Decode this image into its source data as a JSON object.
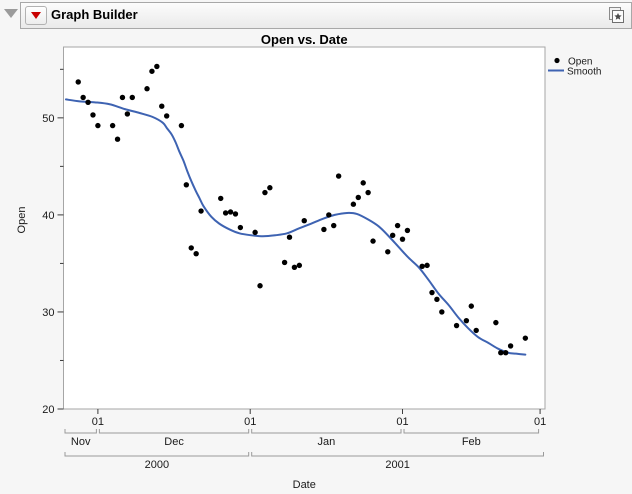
{
  "header": {
    "disclosure_icon": "disclosure-triangle-down",
    "menu_icon": "red-triangle-menu",
    "title": "Graph Builder",
    "corner_icon": "journal-layered-window"
  },
  "colors": {
    "smooth_line": "#3E63B2",
    "point": "#000000",
    "accent_red": "#C80000"
  },
  "chart_data": {
    "type": "scatter",
    "title": "Open vs. Date",
    "xlabel": "Date",
    "ylabel": "Open",
    "ylim": [
      20,
      57.3
    ],
    "x_domain": [
      "2000-11-24",
      "2001-03-02"
    ],
    "grid": "off",
    "legend_position": "right",
    "y_major_ticks": [
      20,
      30,
      40,
      50
    ],
    "y_minor_ticks": [
      25,
      35,
      45,
      55
    ],
    "x_day_ticks": [
      {
        "label": "01",
        "date": "2000-12-01"
      },
      {
        "label": "01",
        "date": "2001-01-01"
      },
      {
        "label": "01",
        "date": "2001-02-01"
      },
      {
        "label": "01",
        "date": "2001-03-01"
      }
    ],
    "x_month_spans": [
      {
        "label": "Nov",
        "start": "2000-11-24",
        "end": "2000-12-01"
      },
      {
        "label": "Dec",
        "start": "2000-12-01",
        "end": "2001-01-01"
      },
      {
        "label": "Jan",
        "start": "2001-01-01",
        "end": "2001-02-01"
      },
      {
        "label": "Feb",
        "start": "2001-02-01",
        "end": "2001-03-01"
      }
    ],
    "x_year_spans": [
      {
        "label": "2000",
        "start": "2000-11-24",
        "end": "2001-01-01"
      },
      {
        "label": "2001",
        "start": "2001-01-01",
        "end": "2001-03-02"
      }
    ],
    "legend": [
      {
        "label": "Open",
        "marker": "point",
        "color": "#000000"
      },
      {
        "label": "Smooth",
        "marker": "line",
        "color": "#3E63B2"
      }
    ],
    "series": [
      {
        "name": "Open",
        "type": "scatter",
        "points": [
          [
            "2000-11-27",
            53.7
          ],
          [
            "2000-11-28",
            52.1
          ],
          [
            "2000-11-29",
            51.6
          ],
          [
            "2000-11-30",
            50.3
          ],
          [
            "2000-12-01",
            49.2
          ],
          [
            "2000-12-04",
            49.2
          ],
          [
            "2000-12-05",
            47.8
          ],
          [
            "2000-12-06",
            52.1
          ],
          [
            "2000-12-07",
            50.4
          ],
          [
            "2000-12-08",
            52.1
          ],
          [
            "2000-12-11",
            53.0
          ],
          [
            "2000-12-12",
            54.8
          ],
          [
            "2000-12-13",
            55.3
          ],
          [
            "2000-12-14",
            51.2
          ],
          [
            "2000-12-15",
            50.2
          ],
          [
            "2000-12-18",
            49.2
          ],
          [
            "2000-12-19",
            43.1
          ],
          [
            "2000-12-20",
            36.6
          ],
          [
            "2000-12-21",
            36.0
          ],
          [
            "2000-12-22",
            40.4
          ],
          [
            "2000-12-26",
            41.7
          ],
          [
            "2000-12-27",
            40.2
          ],
          [
            "2000-12-28",
            40.3
          ],
          [
            "2000-12-29",
            40.1
          ],
          [
            "2000-12-30",
            38.7
          ],
          [
            "2001-01-02",
            38.2
          ],
          [
            "2001-01-03",
            32.7
          ],
          [
            "2001-01-04",
            42.3
          ],
          [
            "2001-01-05",
            42.8
          ],
          [
            "2001-01-08",
            35.1
          ],
          [
            "2001-01-09",
            37.7
          ],
          [
            "2001-01-10",
            34.6
          ],
          [
            "2001-01-11",
            34.8
          ],
          [
            "2001-01-12",
            39.4
          ],
          [
            "2001-01-16",
            38.5
          ],
          [
            "2001-01-17",
            40.0
          ],
          [
            "2001-01-18",
            38.9
          ],
          [
            "2001-01-19",
            44.0
          ],
          [
            "2001-01-22",
            41.1
          ],
          [
            "2001-01-23",
            41.8
          ],
          [
            "2001-01-24",
            43.3
          ],
          [
            "2001-01-25",
            42.3
          ],
          [
            "2001-01-26",
            37.3
          ],
          [
            "2001-01-29",
            36.2
          ],
          [
            "2001-01-30",
            37.9
          ],
          [
            "2001-01-31",
            38.9
          ],
          [
            "2001-02-01",
            37.5
          ],
          [
            "2001-02-02",
            38.4
          ],
          [
            "2001-02-05",
            34.7
          ],
          [
            "2001-02-06",
            34.8
          ],
          [
            "2001-02-07",
            32.0
          ],
          [
            "2001-02-08",
            31.3
          ],
          [
            "2001-02-09",
            30.0
          ],
          [
            "2001-02-12",
            28.6
          ],
          [
            "2001-02-14",
            29.1
          ],
          [
            "2001-02-15",
            30.6
          ],
          [
            "2001-02-16",
            28.1
          ],
          [
            "2001-02-20",
            28.9
          ],
          [
            "2001-02-21",
            25.8
          ],
          [
            "2001-02-22",
            25.8
          ],
          [
            "2001-02-23",
            26.5
          ],
          [
            "2001-02-26",
            27.3
          ]
        ]
      },
      {
        "name": "Smooth",
        "type": "line",
        "x_unit": "days since 2000-11-24",
        "points": [
          [
            0.5,
            51.9
          ],
          [
            3.3,
            51.7
          ],
          [
            6.4,
            51.6
          ],
          [
            9.4,
            51.4
          ],
          [
            12.5,
            50.9
          ],
          [
            15.5,
            50.5
          ],
          [
            18.1,
            50.1
          ],
          [
            20.2,
            49.5
          ],
          [
            21.1,
            48.9
          ],
          [
            22.0,
            48.3
          ],
          [
            22.8,
            47.5
          ],
          [
            23.6,
            46.5
          ],
          [
            24.4,
            45.6
          ],
          [
            25.2,
            44.5
          ],
          [
            26.0,
            43.5
          ],
          [
            26.9,
            42.5
          ],
          [
            27.7,
            41.7
          ],
          [
            28.5,
            40.9
          ],
          [
            30.1,
            39.8
          ],
          [
            31.7,
            39.1
          ],
          [
            33.8,
            38.5
          ],
          [
            35.8,
            38.1
          ],
          [
            38.2,
            37.9
          ],
          [
            40.6,
            37.8
          ],
          [
            43.1,
            37.9
          ],
          [
            45.5,
            38.1
          ],
          [
            47.9,
            38.6
          ],
          [
            50.4,
            39.1
          ],
          [
            52.8,
            39.6
          ],
          [
            55.2,
            40.0
          ],
          [
            57.7,
            40.2
          ],
          [
            59.7,
            40.1
          ],
          [
            62.1,
            39.5
          ],
          [
            64.2,
            38.8
          ],
          [
            66.2,
            37.8
          ],
          [
            68.2,
            36.7
          ],
          [
            70.2,
            35.6
          ],
          [
            72.3,
            34.6
          ],
          [
            74.3,
            33.3
          ],
          [
            76.3,
            31.9
          ],
          [
            78.4,
            30.7
          ],
          [
            80.4,
            29.4
          ],
          [
            82.4,
            28.3
          ],
          [
            84.4,
            27.4
          ],
          [
            86.5,
            26.8
          ],
          [
            88.5,
            26.2
          ],
          [
            90.5,
            25.8
          ],
          [
            92.1,
            25.7
          ],
          [
            94.0,
            25.6
          ]
        ]
      }
    ]
  }
}
